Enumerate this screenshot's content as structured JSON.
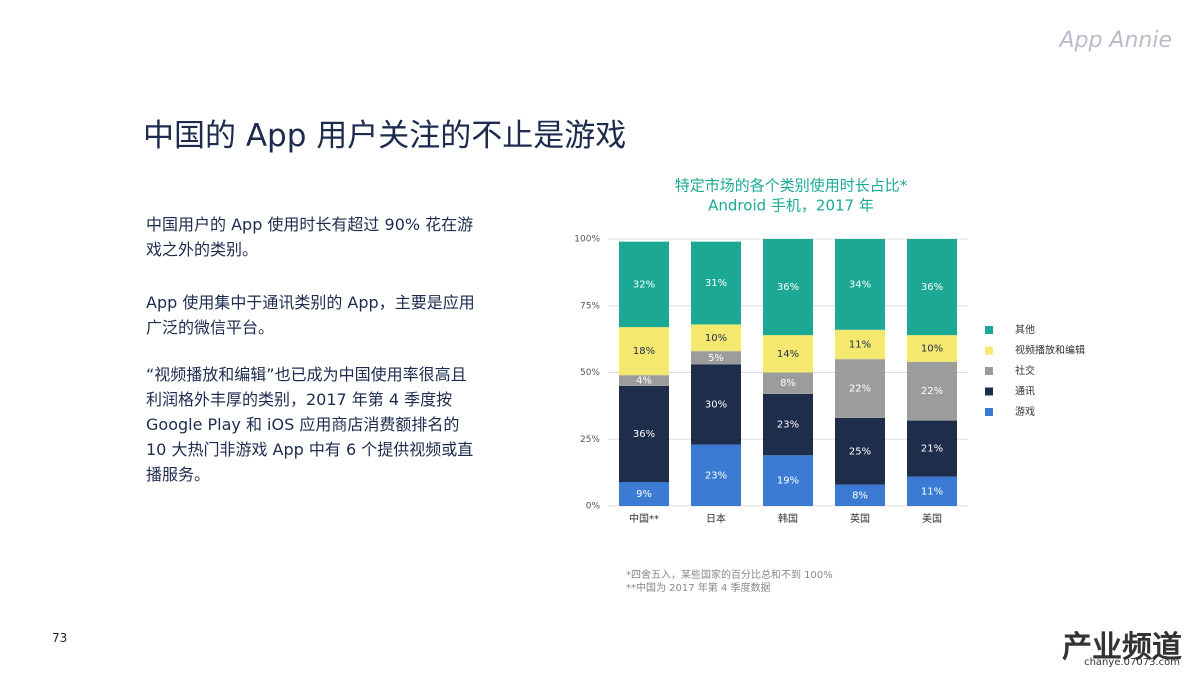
{
  "logo": "App Annie",
  "slide_title": "中国的 App 用户关注的不止是游戏",
  "paragraphs": [
    "中国用户的 App 使用时长有超过 90% 花在游戏之外的类别。",
    "App 使用集中于通讯类别的 App，主要是应用广泛的微信平台。",
    "“视频播放和编辑”也已成为中国使用率很高且利润格外丰厚的类别，2017 年第 4 季度按 Google Play 和 iOS 应用商店消费额排名的 10 大热门非游戏 App 中有 6 个提供视频或直播服务。"
  ],
  "footnotes": [
    "*四舍五入，某些国家的百分比总和不到 100%",
    "**中国为 2017 年第 4 季度数据"
  ],
  "page_number": "73",
  "watermark": [
    "产业频道",
    "chanye.07073.com"
  ],
  "chart_data": {
    "type": "stacked_bar",
    "title": "特定市场的各个类别使用时长占比*",
    "subtitle": "Android 手机，2017 年",
    "categories": [
      "中国**",
      "日本",
      "韩国",
      "英国",
      "美国"
    ],
    "ylim": [
      0,
      100
    ],
    "yticks": [
      {
        "value": 0,
        "label": "0%"
      },
      {
        "value": 25,
        "label": "25%"
      },
      {
        "value": 50,
        "label": "50%"
      },
      {
        "value": 75,
        "label": "75%"
      },
      {
        "value": 100,
        "label": "100%"
      }
    ],
    "grid": true,
    "legend": "right",
    "series": [
      {
        "name": "游戏",
        "color": "#3b7bd4",
        "values": [
          9,
          23,
          19,
          8,
          11
        ],
        "value_labels": [
          "9%",
          "23%",
          "19%",
          "8%",
          "11%"
        ]
      },
      {
        "name": "通讯",
        "color": "#1e2d4b",
        "values": [
          36,
          30,
          23,
          25,
          21
        ],
        "value_labels": [
          "36%",
          "30%",
          "23%",
          "25%",
          "21%"
        ]
      },
      {
        "name": "社交",
        "color": "#9c9c9c",
        "values": [
          4,
          5,
          8,
          22,
          22
        ],
        "value_labels": [
          "4%",
          "5%",
          "8%",
          "22%",
          "22%"
        ]
      },
      {
        "name": "视频播放和编辑",
        "color": "#f4e86e",
        "values": [
          18,
          10,
          14,
          11,
          10
        ],
        "value_labels": [
          "18%",
          "10%",
          "14%",
          "11%",
          "10%"
        ]
      },
      {
        "name": "其他",
        "color": "#1ba996",
        "values": [
          32,
          31,
          36,
          34,
          36
        ],
        "value_labels": [
          "32%",
          "31%",
          "36%",
          "34%",
          "36%"
        ]
      }
    ]
  }
}
